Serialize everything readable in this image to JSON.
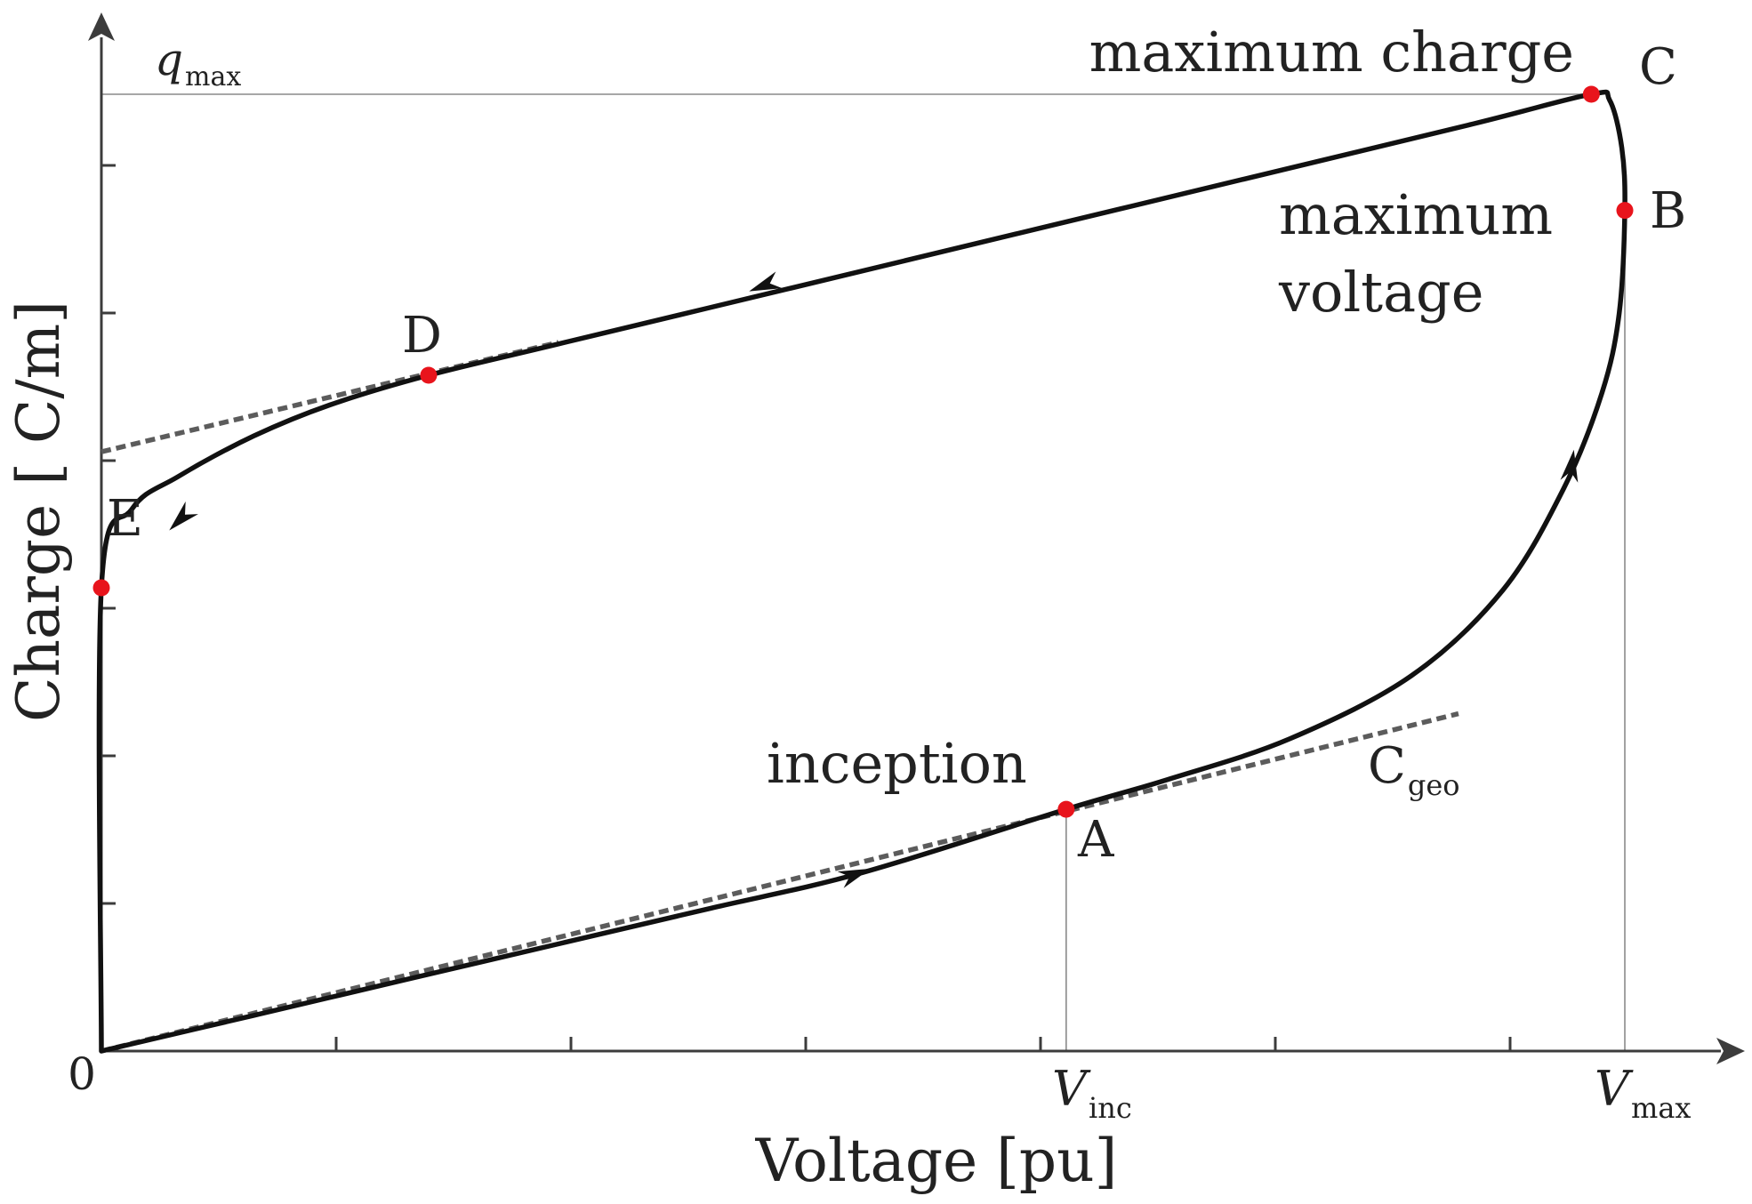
{
  "chart_data": {
    "type": "line",
    "title": "",
    "xlabel": "Voltage [pu]",
    "ylabel": "Charge [ C/m]",
    "origin_label": "0",
    "x_tick_labels": [
      {
        "main": "V",
        "sub": "inc",
        "value": 0.6333
      },
      {
        "main": "V",
        "sub": "max",
        "value": 1.0
      }
    ],
    "y_tick_labels": [
      {
        "main": "q",
        "sub": "max",
        "value": 1.0
      }
    ],
    "xlim": [
      0,
      1.07
    ],
    "ylim": [
      0,
      1.05
    ],
    "grid": false,
    "series": [
      {
        "x": [
          0.0,
          0.1,
          0.2,
          0.3,
          0.4,
          0.5,
          0.6333,
          0.7,
          0.78,
          0.86,
          0.92,
          0.96,
          0.985,
          0.9963,
          1.0,
          0.998,
          0.99,
          0.978,
          0.9,
          0.75,
          0.6,
          0.45,
          0.3,
          0.2148,
          0.15,
          0.1,
          0.05,
          0.02,
          0.0,
          0.0
        ],
        "y": [
          0.0,
          0.0373,
          0.0747,
          0.112,
          0.1493,
          0.1867,
          0.2527,
          0.2838,
          0.3263,
          0.3924,
          0.4819,
          0.5884,
          0.6879,
          0.7712,
          0.8786,
          0.944,
          0.9939,
          1.0,
          0.9689,
          0.9113,
          0.8539,
          0.7964,
          0.739,
          0.7063,
          0.6753,
          0.6428,
          0.6001,
          0.5664,
          0.4842,
          0.0
        ]
      }
    ],
    "reference_lines": [
      {
        "name": "C",
        "name_sub": "geo",
        "x": [
          0.0,
          0.8908
        ],
        "y": [
          0.0,
          0.3526
        ]
      },
      {
        "x": [
          0.0,
          0.3
        ],
        "y": [
          0.6263,
          0.7407
        ]
      }
    ],
    "guide_lines": [
      {
        "x": [
          0.0,
          0.978
        ],
        "y": [
          1.0,
          1.0
        ]
      },
      {
        "x": [
          0.6333,
          0.6333
        ],
        "y": [
          0.0,
          0.2527
        ]
      },
      {
        "x": [
          1.0,
          1.0
        ],
        "y": [
          0.0,
          0.8786
        ]
      }
    ],
    "arrows": [
      {
        "x": 0.495,
        "y": 0.1848,
        "dx": 1.0,
        "dy": 0.3733
      },
      {
        "x": 0.965,
        "y": 0.612,
        "dx": 0.15,
        "dy": 1.0
      },
      {
        "x": 0.435,
        "y": 0.8,
        "dx": -1.0,
        "dy": -0.383
      },
      {
        "x": 0.052,
        "y": 0.556,
        "dx": -1.0,
        "dy": -1.0
      }
    ],
    "points": [
      {
        "label": "A",
        "x": 0.6333,
        "y": 0.2527,
        "color": "#e8141c",
        "label_pos": "below-right"
      },
      {
        "label": "B",
        "x": 1.0,
        "y": 0.8786,
        "color": "#e8141c",
        "label_pos": "right"
      },
      {
        "label": "C",
        "x": 0.978,
        "y": 1.0,
        "color": "#e8141c",
        "label_pos": "above-right"
      },
      {
        "label": "D",
        "x": 0.2148,
        "y": 0.7063,
        "color": "#e8141c",
        "label_pos": "above"
      },
      {
        "label": "E",
        "x": 0.0,
        "y": 0.4842,
        "color": "#e8141c",
        "label_pos": "above-right"
      }
    ],
    "annotations": [
      {
        "text": "maximum charge",
        "near": "C"
      },
      {
        "text": "maximum",
        "near": "B"
      },
      {
        "text": "voltage",
        "near": "B"
      },
      {
        "text": "inception",
        "near": "A"
      }
    ],
    "colors": {
      "curve": "#111111",
      "reference": "#5c5c5c",
      "axis": "#3c3c3c",
      "guide": "#8a8a8a",
      "marker": "#e8141c"
    }
  }
}
